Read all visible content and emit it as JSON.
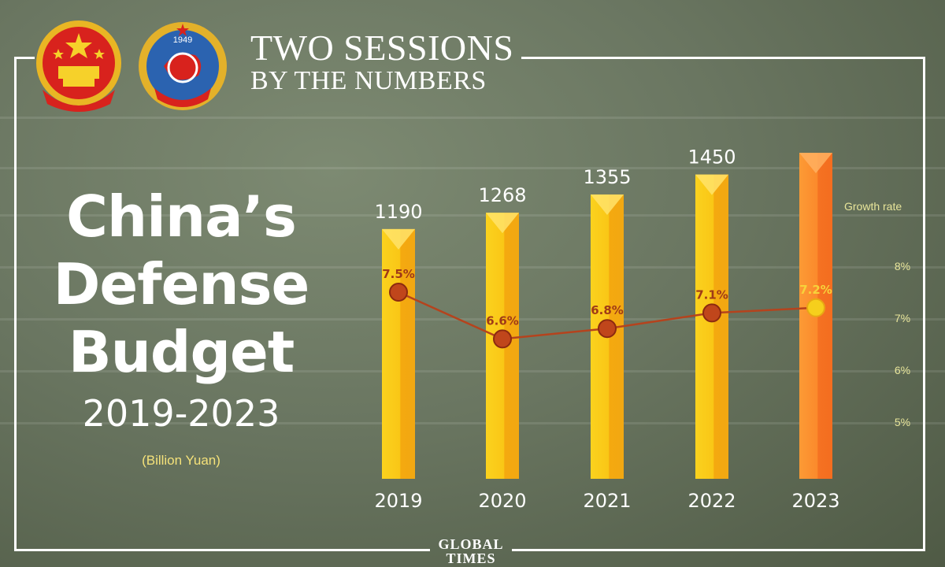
{
  "header": {
    "line1": "TWO SESSIONS",
    "line2": "BY THE NUMBERS"
  },
  "title": {
    "line1": "China’s",
    "line2": "Defense",
    "line3": "Budget",
    "years": "2019-2023",
    "unit": "(Billion Yuan)"
  },
  "emblems": {
    "left_icon": "national-emblem-icon",
    "right_icon": "cppcc-emblem-icon",
    "right_emblem_year": "1949"
  },
  "logo": {
    "line1": "GLOBAL",
    "line2": "TIMES"
  },
  "colors": {
    "bar": "#f7c41b",
    "bar_highlight": "#fb8a2e",
    "line": "#b5431d",
    "marker": "#c0461b",
    "marker_highlight": "#f6cf1c",
    "pct_label": "#a03a17"
  },
  "chart_data": {
    "type": "bar",
    "categories": [
      "2019",
      "2020",
      "2021",
      "2022",
      "2023"
    ],
    "series": [
      {
        "values": [
          1190,
          1268,
          1355,
          1450,
          1553.7
        ]
      },
      {
        "name": "Growth rate",
        "type": "line",
        "values": [
          7.5,
          6.6,
          6.8,
          7.1,
          7.2
        ],
        "labels": [
          "7.5%",
          "6.6%",
          "6.8%",
          "7.1%",
          "7.2%"
        ]
      }
    ],
    "value_labels": [
      "1190",
      "1268",
      "1355",
      "1450",
      ""
    ],
    "secondary_axis": {
      "label": "Growth rate",
      "ticks": [
        "8%",
        "7%",
        "6%",
        "5%"
      ],
      "tick_values": [
        8,
        7,
        6,
        5
      ]
    },
    "ylim": [
      0,
      1553.7
    ],
    "y2lim": [
      4,
      9
    ]
  }
}
